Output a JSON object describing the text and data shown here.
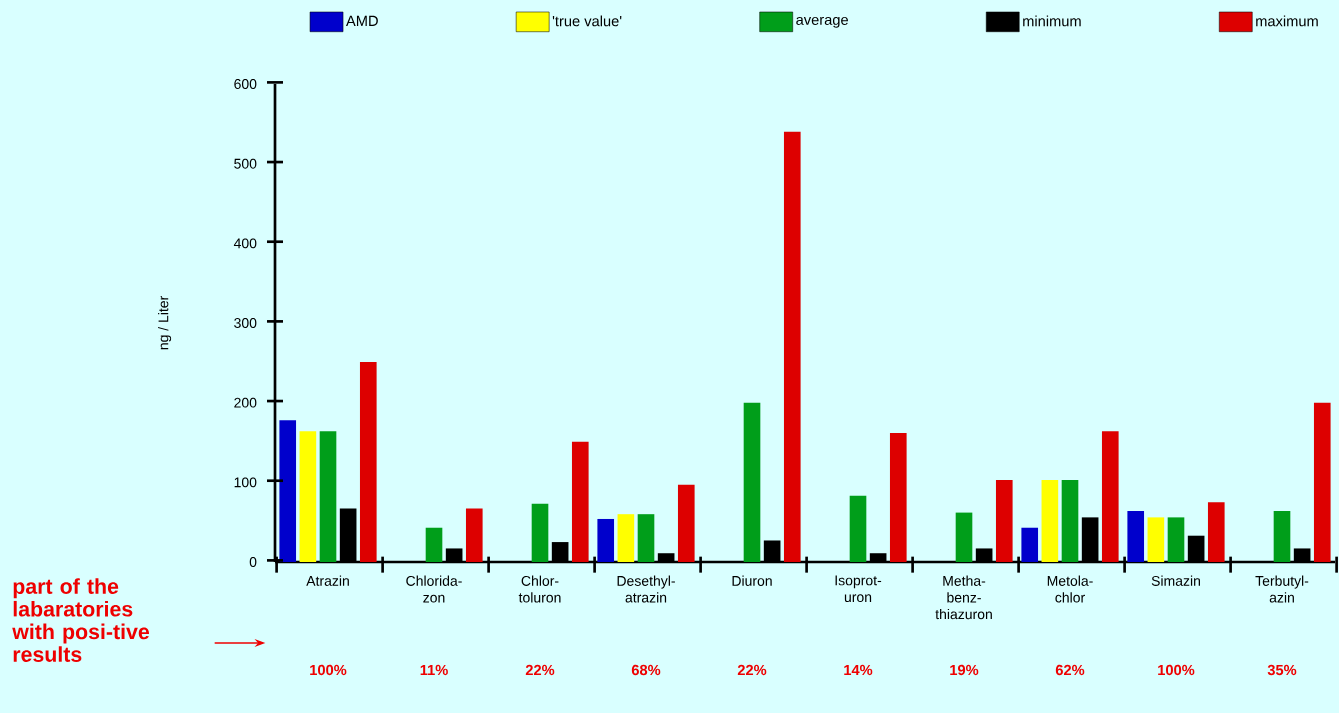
{
  "chart_data": {
    "type": "bar",
    "categories": [
      "Atrazin",
      "Chlorida-zon",
      "Chlor-toluron",
      "Desethyl-atrazin",
      "Diuron",
      "Isoprot-uron",
      "Metha-benz-thiazuron",
      "Metola-chlor",
      "Simazin",
      "Terbutyl-azin"
    ],
    "series": [
      {
        "name": "AMD",
        "color": "#0000cc",
        "values": [
          178,
          null,
          null,
          54,
          null,
          null,
          null,
          43,
          64,
          null
        ]
      },
      {
        "name": "'true value'",
        "color": "#ffff00",
        "values": [
          164,
          null,
          null,
          60,
          null,
          null,
          null,
          103,
          56,
          null
        ]
      },
      {
        "name": "average",
        "color": "#009e1a",
        "values": [
          164,
          43,
          73,
          60,
          200,
          83,
          62,
          103,
          56,
          64
        ]
      },
      {
        "name": "minimum",
        "color": "#000000",
        "values": [
          67,
          17,
          25,
          11,
          27,
          11,
          17,
          56,
          33,
          17
        ]
      },
      {
        "name": "maximum",
        "color": "#dd0000",
        "values": [
          251,
          67,
          151,
          97,
          540,
          162,
          103,
          164,
          75,
          200
        ]
      }
    ],
    "ylabel": "ng / Liter",
    "ylim": [
      0,
      600
    ],
    "yticks": [
      0,
      100,
      200,
      300,
      400,
      500,
      600
    ],
    "legend": "top",
    "annotations": [
      "part of the labaratories with posi-tive results",
      "100%",
      "11%",
      "22%",
      "68%",
      "22%",
      "14%",
      "19%",
      "62%",
      "100%",
      "35%"
    ]
  }
}
